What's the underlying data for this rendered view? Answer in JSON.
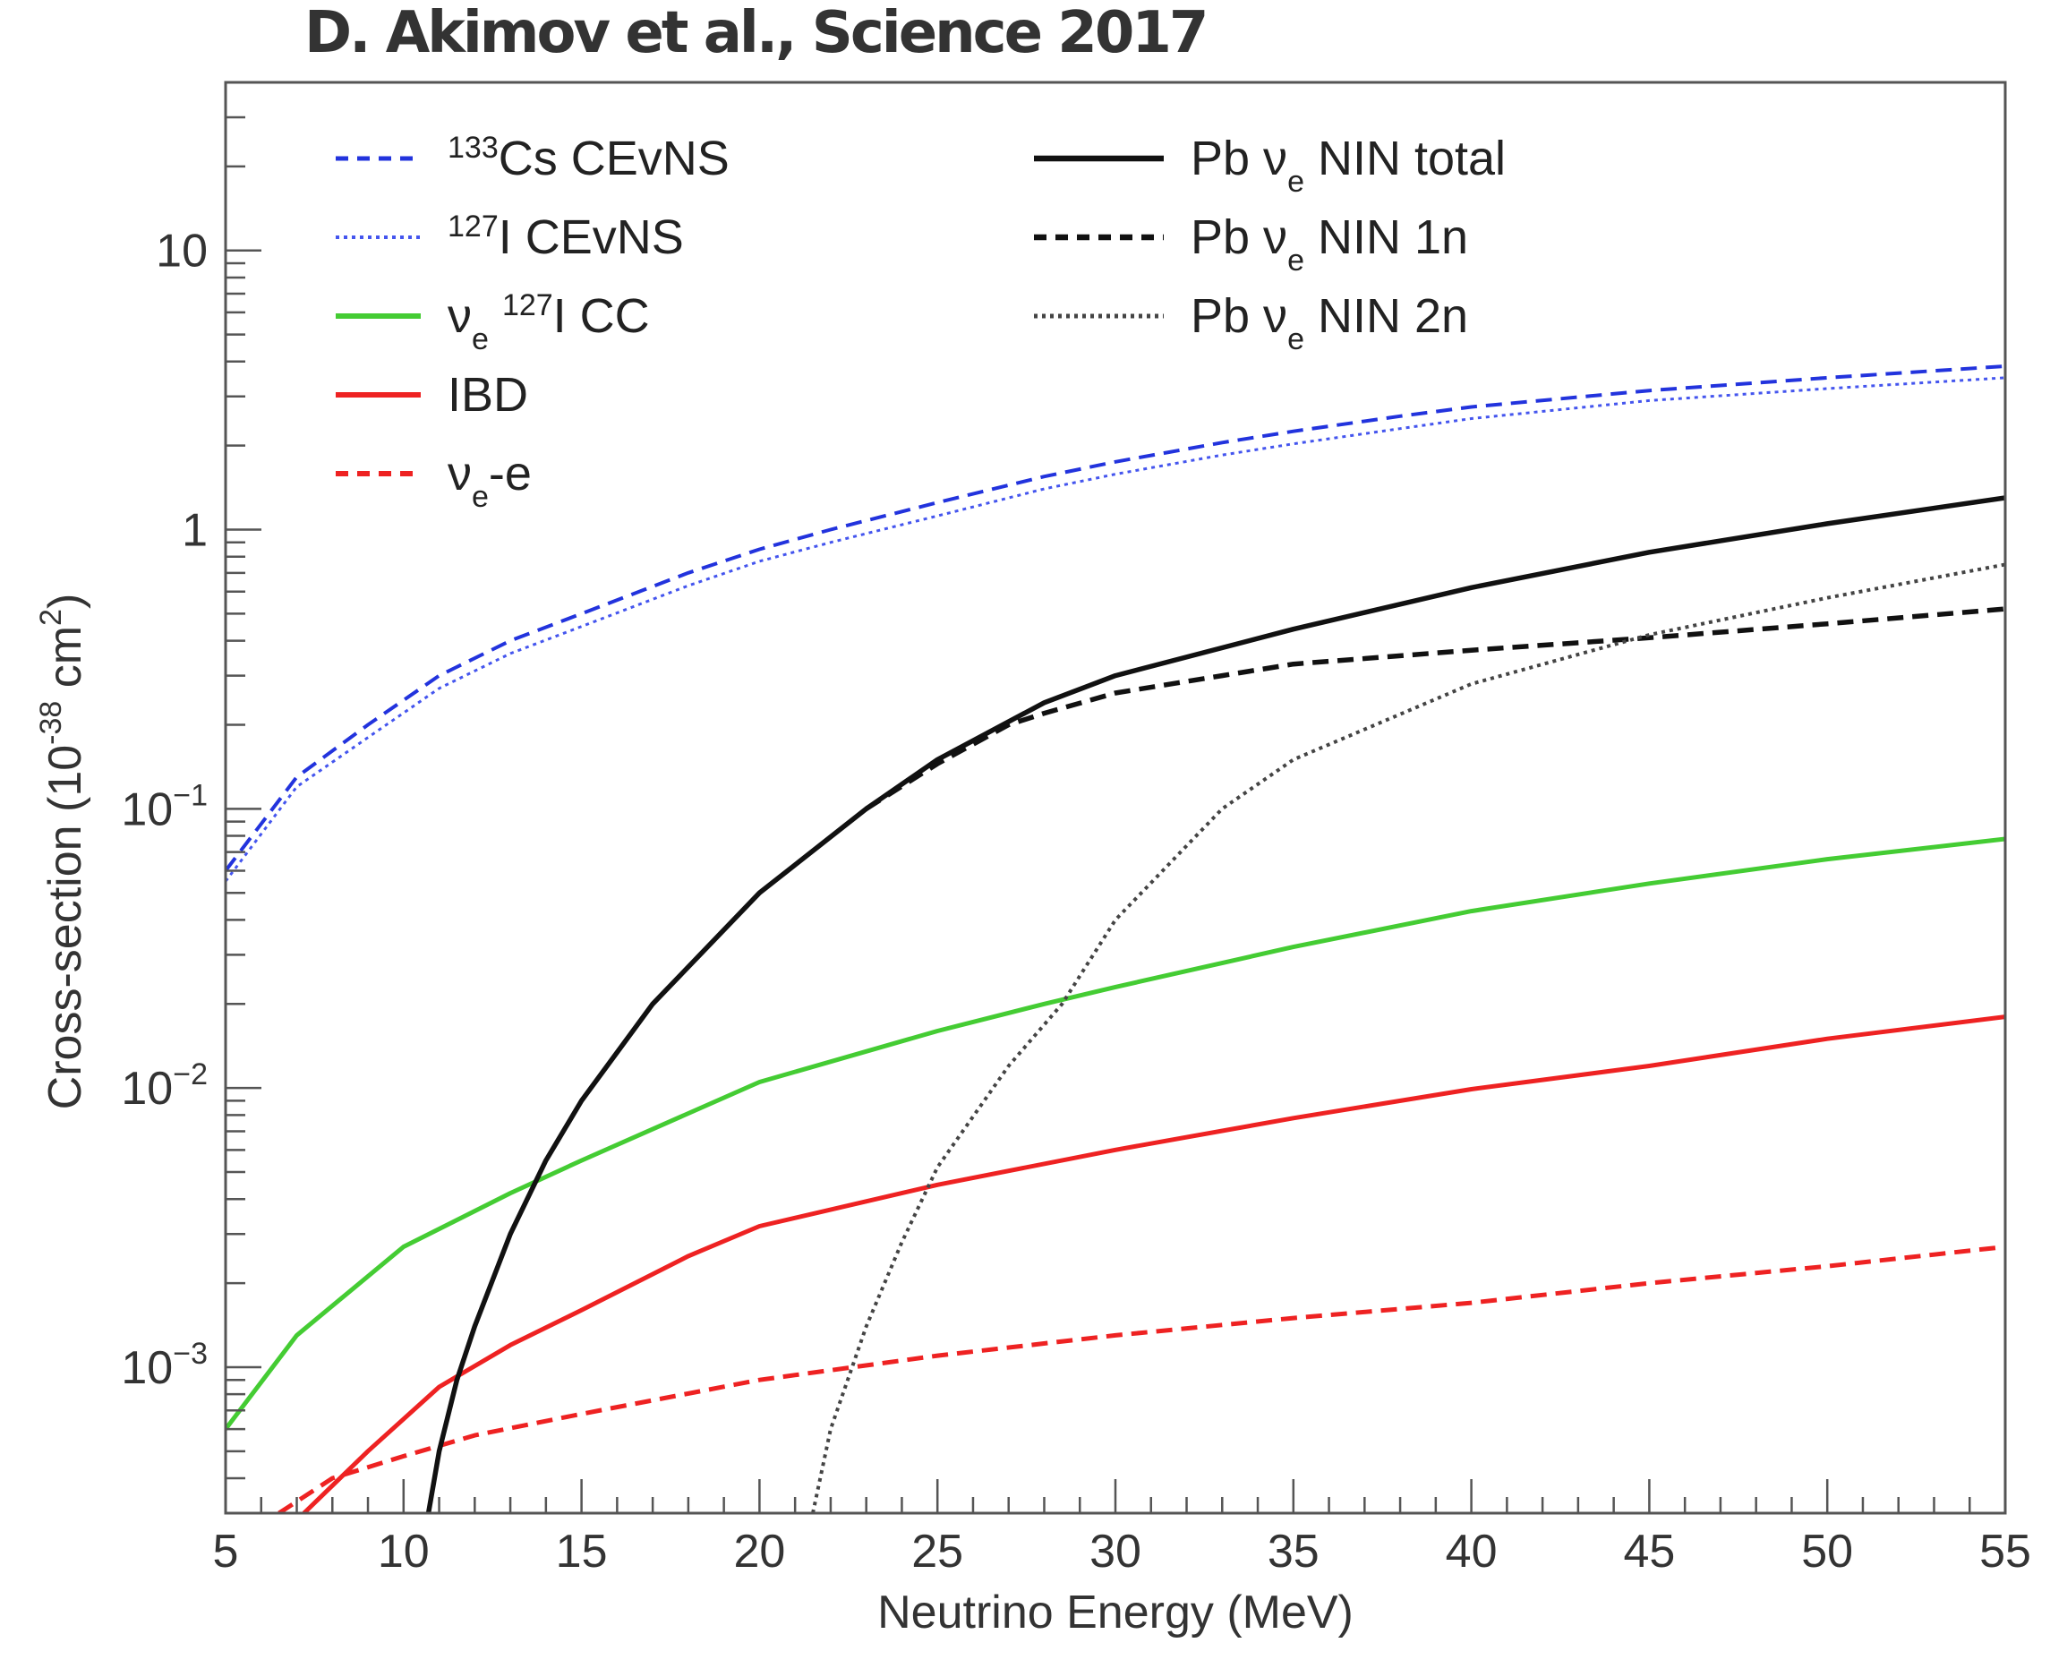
{
  "credit": "D. Akimov et al., Science 2017",
  "chart_data": {
    "type": "line",
    "title": "",
    "xlabel": "Neutrino Energy (MeV)",
    "ylabel_parts": [
      "Cross-section (10",
      "-38",
      " cm",
      "2",
      ")"
    ],
    "xlim": [
      5,
      55
    ],
    "ylim": [
      0.0003,
      40
    ],
    "yscale": "log",
    "xticks": [
      5,
      10,
      15,
      20,
      25,
      30,
      35,
      40,
      45,
      50,
      55
    ],
    "xtick_labels": [
      "5",
      "10",
      "15",
      "20",
      "25",
      "30",
      "35",
      "40",
      "45",
      "50",
      "55"
    ],
    "yticks": [
      {
        "value": 10,
        "base": "10",
        "exp": ""
      },
      {
        "value": 1,
        "base": "1",
        "exp": ""
      },
      {
        "value": 0.1,
        "base": "10",
        "exp": "−1"
      },
      {
        "value": 0.01,
        "base": "10",
        "exp": "−2"
      },
      {
        "value": 0.001,
        "base": "10",
        "exp": "−3"
      }
    ],
    "grid": false,
    "legend_position": "top",
    "series": [
      {
        "id": "cs",
        "label_parts": [
          {
            "t": "133",
            "sup": true
          },
          {
            "t": "Cs CEvNS"
          }
        ],
        "color": "#2233dd",
        "style": "dashed",
        "width": 4,
        "x": [
          5,
          7,
          9,
          11,
          13,
          15,
          18,
          20,
          22,
          25,
          28,
          30,
          33,
          35,
          38,
          40,
          45,
          50,
          55
        ],
        "y": [
          0.06,
          0.13,
          0.2,
          0.3,
          0.4,
          0.5,
          0.7,
          0.85,
          1.0,
          1.25,
          1.55,
          1.75,
          2.05,
          2.25,
          2.55,
          2.75,
          3.15,
          3.5,
          3.85
        ]
      },
      {
        "id": "i",
        "label_parts": [
          {
            "t": "127",
            "sup": true
          },
          {
            "t": "I CEvNS"
          }
        ],
        "color": "#4455ee",
        "style": "dotted",
        "width": 3,
        "x": [
          5,
          7,
          9,
          11,
          13,
          15,
          18,
          20,
          22,
          25,
          28,
          30,
          33,
          35,
          38,
          40,
          45,
          50,
          55
        ],
        "y": [
          0.055,
          0.12,
          0.18,
          0.27,
          0.36,
          0.45,
          0.63,
          0.77,
          0.9,
          1.12,
          1.4,
          1.58,
          1.85,
          2.03,
          2.3,
          2.5,
          2.9,
          3.2,
          3.5
        ]
      },
      {
        "id": "cc",
        "label_parts": [
          {
            "t": "ν"
          },
          {
            "t": "e",
            "sub": true
          },
          {
            "t": " "
          },
          {
            "t": "127",
            "sup": true
          },
          {
            "t": "I CC"
          }
        ],
        "color": "#44cc33",
        "style": "solid",
        "width": 5,
        "x": [
          5,
          7,
          10,
          13,
          15,
          20,
          25,
          28,
          30,
          35,
          40,
          45,
          50,
          55
        ],
        "y": [
          0.0006,
          0.0013,
          0.0027,
          0.0042,
          0.0055,
          0.0105,
          0.016,
          0.02,
          0.023,
          0.032,
          0.043,
          0.054,
          0.066,
          0.078
        ]
      },
      {
        "id": "ibd",
        "label_parts": [
          {
            "t": "IBD"
          }
        ],
        "color": "#ee2222",
        "style": "solid",
        "width": 5,
        "x": [
          7.2,
          9,
          11,
          13,
          15,
          18,
          20,
          25,
          30,
          35,
          40,
          45,
          50,
          55
        ],
        "y": [
          0.0003,
          0.0005,
          0.00085,
          0.0012,
          0.0016,
          0.0025,
          0.0032,
          0.0045,
          0.006,
          0.0078,
          0.0099,
          0.012,
          0.015,
          0.018
        ]
      },
      {
        "id": "nue",
        "label_parts": [
          {
            "t": "ν"
          },
          {
            "t": "e",
            "sub": true
          },
          {
            "t": "-e"
          }
        ],
        "color": "#ee2222",
        "style": "dashed",
        "width": 5,
        "x": [
          6.5,
          8,
          10,
          12,
          15,
          20,
          25,
          30,
          35,
          40,
          45,
          50,
          55
        ],
        "y": [
          0.0003,
          0.0004,
          0.00048,
          0.00057,
          0.00068,
          0.0009,
          0.0011,
          0.0013,
          0.0015,
          0.0017,
          0.002,
          0.0023,
          0.0027
        ]
      },
      {
        "id": "pbtot",
        "label_parts": [
          {
            "t": "Pb ν"
          },
          {
            "t": "e",
            "sub": true
          },
          {
            "t": " NIN total"
          }
        ],
        "color": "#111111",
        "style": "solid",
        "width": 5.5,
        "x": [
          10.7,
          11,
          11.5,
          12,
          13,
          14,
          15,
          17,
          20,
          23,
          25,
          28,
          30,
          35,
          40,
          45,
          50,
          55
        ],
        "y": [
          0.0003,
          0.0005,
          0.0009,
          0.0014,
          0.003,
          0.0055,
          0.009,
          0.02,
          0.05,
          0.1,
          0.15,
          0.24,
          0.3,
          0.44,
          0.62,
          0.83,
          1.05,
          1.3
        ]
      },
      {
        "id": "pb1n",
        "label_parts": [
          {
            "t": "Pb ν"
          },
          {
            "t": "e",
            "sub": true
          },
          {
            "t": " NIN 1n"
          }
        ],
        "color": "#111111",
        "style": "dashed",
        "width": 5.5,
        "x": [
          23,
          25,
          27,
          28,
          30,
          33,
          35,
          40,
          45,
          50,
          55
        ],
        "y": [
          0.1,
          0.145,
          0.2,
          0.22,
          0.26,
          0.3,
          0.33,
          0.37,
          0.41,
          0.46,
          0.52
        ]
      },
      {
        "id": "pb2n",
        "label_parts": [
          {
            "t": "Pb ν"
          },
          {
            "t": "e",
            "sub": true
          },
          {
            "t": " NIN 2n"
          }
        ],
        "color": "#444444",
        "style": "dotted",
        "width": 4,
        "x": [
          21.5,
          22,
          23,
          24,
          25,
          27,
          28.5,
          30,
          33,
          35,
          40,
          45,
          50,
          55
        ],
        "y": [
          0.0003,
          0.0006,
          0.0014,
          0.0028,
          0.0052,
          0.012,
          0.02,
          0.04,
          0.1,
          0.15,
          0.28,
          0.42,
          0.57,
          0.75
        ]
      }
    ]
  }
}
